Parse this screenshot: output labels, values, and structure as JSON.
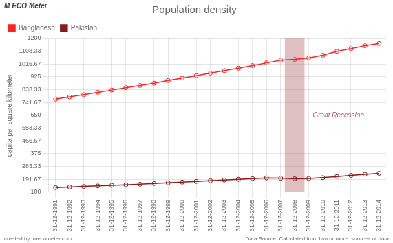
{
  "chart_data": {
    "type": "line",
    "title": "Population density",
    "ylabel": "capita per square kilometer",
    "x": [
      1991,
      1992,
      1993,
      1994,
      1995,
      1996,
      1997,
      1998,
      1999,
      2000,
      2001,
      2002,
      2003,
      2004,
      2005,
      2006,
      2007,
      2008,
      2009,
      2010,
      2011,
      2012,
      2013,
      2014
    ],
    "series": [
      {
        "name": "Bangladesh",
        "color": "#ff2020",
        "marker": "circle",
        "values": [
          766,
          782,
          798,
          815,
          831,
          848,
          864,
          880,
          899,
          916,
          934,
          952,
          970,
          988,
          1006,
          1025,
          1044,
          1050,
          1060,
          1080,
          1108,
          1127,
          1148,
          1164
        ]
      },
      {
        "name": "Pakistan",
        "color": "#8b1a1a",
        "marker": "circle",
        "values": [
          133,
          137,
          141,
          145,
          149,
          153,
          157,
          162,
          167,
          172,
          177,
          182,
          187,
          192,
          197,
          202,
          200,
          196,
          198,
          204,
          212,
          220,
          228,
          235
        ]
      }
    ],
    "xlim": [
      1990.5,
      2014.5
    ],
    "xticks": [
      {
        "value": 1991,
        "label": "31-12-1991"
      },
      {
        "value": 1992,
        "label": "31-12-1992"
      },
      {
        "value": 1993,
        "label": "31-12-1993"
      },
      {
        "value": 1994,
        "label": "31-12-1994"
      },
      {
        "value": 1995,
        "label": "31-12-1995"
      },
      {
        "value": 1996,
        "label": "31-12-1996"
      },
      {
        "value": 1997,
        "label": "31-12-1997"
      },
      {
        "value": 1998,
        "label": "31-12-1998"
      },
      {
        "value": 1999,
        "label": "31-12-1999"
      },
      {
        "value": 2000,
        "label": "31-12-2000"
      },
      {
        "value": 2001,
        "label": "31-12-2001"
      },
      {
        "value": 2002,
        "label": "31-12-2002"
      },
      {
        "value": 2003,
        "label": "31-12-2003"
      },
      {
        "value": 2004,
        "label": "31-12-2004"
      },
      {
        "value": 2005,
        "label": "31-12-2005"
      },
      {
        "value": 2006,
        "label": "31-12-2006"
      },
      {
        "value": 2007,
        "label": "31-12-2007"
      },
      {
        "value": 2008,
        "label": "31-12-2008"
      },
      {
        "value": 2009,
        "label": "31-12-2009"
      },
      {
        "value": 2010,
        "label": "31-12-2010"
      },
      {
        "value": 2011,
        "label": "31-12-2011"
      },
      {
        "value": 2012,
        "label": "31-12-2012"
      },
      {
        "value": 2013,
        "label": "31-12-2013"
      },
      {
        "value": 2014,
        "label": "31-12-2014"
      }
    ],
    "ylim": [
      100,
      1200
    ],
    "yticks": [
      100,
      191.67,
      283.33,
      375,
      466.67,
      558.33,
      650,
      741.67,
      833.33,
      925,
      1016.67,
      1108.33,
      1200
    ],
    "grid": true,
    "legend": "upper left",
    "annotations": [
      {
        "type": "span",
        "x": [
          2007.3,
          2008.7
        ],
        "text": "Great Recession",
        "color": "#b06060"
      }
    ],
    "credit": "created by: mecometer.com",
    "source": "Data Source: Calculated from two or more  sources of data",
    "logo": [
      "M",
      "ECO",
      "Meter"
    ]
  }
}
